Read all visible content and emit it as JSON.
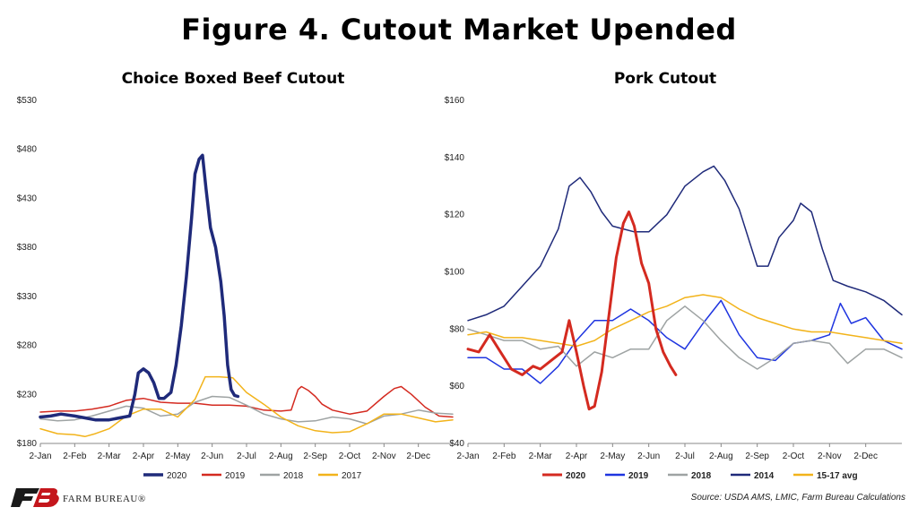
{
  "page": {
    "title": "Figure 4. Cutout Market Upended",
    "source": "Source: USDA AMS, LMIC,  Farm Bureau Calculations",
    "logo_text": "FARM BUREAU®",
    "logo_mark": "FB"
  },
  "colors": {
    "y2020_beef": "#1f2a7a",
    "y2019_beef": "#d42a20",
    "y2018": "#9ea3a3",
    "y2017": "#f2b31a",
    "y2020_pork": "#d42a20",
    "y2019_pork": "#1f35e0",
    "y2014": "#1f2a7a",
    "avg1517": "#f2b31a",
    "logo_red": "#c4161c",
    "logo_dark": "#1a1a1a"
  },
  "chart_data": [
    {
      "type": "line",
      "title": "Choice Boxed Beef Cutout",
      "xlabel": "",
      "ylabel": "",
      "x_domain": [
        0,
        12
      ],
      "ylim": [
        180,
        530
      ],
      "y_ticks": [
        "$180",
        "$230",
        "$280",
        "$330",
        "$380",
        "$430",
        "$480",
        "$530"
      ],
      "x_ticks": [
        "2-Jan",
        "2-Feb",
        "2-Mar",
        "2-Apr",
        "2-May",
        "2-Jun",
        "2-Jul",
        "2-Aug",
        "2-Sep",
        "2-Oct",
        "2-Nov",
        "2-Dec"
      ],
      "legend": "bottom",
      "series": [
        {
          "name": "2020",
          "color_key": "y2020_beef",
          "width": 3.5,
          "points": [
            [
              0,
              207
            ],
            [
              0.3,
              208
            ],
            [
              0.6,
              210
            ],
            [
              1,
              208
            ],
            [
              1.3,
              206
            ],
            [
              1.6,
              204
            ],
            [
              2,
              204
            ],
            [
              2.3,
              206
            ],
            [
              2.6,
              208
            ],
            [
              2.75,
              230
            ],
            [
              2.85,
              252
            ],
            [
              3,
              256
            ],
            [
              3.15,
              252
            ],
            [
              3.3,
              242
            ],
            [
              3.45,
              226
            ],
            [
              3.6,
              226
            ],
            [
              3.8,
              232
            ],
            [
              3.95,
              260
            ],
            [
              4.1,
              300
            ],
            [
              4.25,
              350
            ],
            [
              4.4,
              410
            ],
            [
              4.5,
              455
            ],
            [
              4.62,
              470
            ],
            [
              4.72,
              474
            ],
            [
              4.82,
              440
            ],
            [
              4.95,
              400
            ],
            [
              5.1,
              380
            ],
            [
              5.25,
              345
            ],
            [
              5.35,
              310
            ],
            [
              5.45,
              260
            ],
            [
              5.55,
              235
            ],
            [
              5.65,
              229
            ],
            [
              5.75,
              228
            ]
          ]
        },
        {
          "name": "2019",
          "color_key": "y2019_beef",
          "width": 1.5,
          "points": [
            [
              0,
              212
            ],
            [
              0.5,
              213
            ],
            [
              1,
              213
            ],
            [
              1.5,
              215
            ],
            [
              2,
              218
            ],
            [
              2.5,
              224
            ],
            [
              3,
              226
            ],
            [
              3.5,
              222
            ],
            [
              4,
              221
            ],
            [
              4.5,
              221
            ],
            [
              5,
              219
            ],
            [
              5.5,
              219
            ],
            [
              6,
              218
            ],
            [
              6.5,
              214
            ],
            [
              7,
              213
            ],
            [
              7.3,
              214
            ],
            [
              7.5,
              235
            ],
            [
              7.6,
              238
            ],
            [
              7.8,
              234
            ],
            [
              8,
              228
            ],
            [
              8.2,
              220
            ],
            [
              8.5,
              214
            ],
            [
              9,
              210
            ],
            [
              9.5,
              213
            ],
            [
              10,
              228
            ],
            [
              10.3,
              236
            ],
            [
              10.5,
              238
            ],
            [
              10.8,
              230
            ],
            [
              11.2,
              217
            ],
            [
              11.6,
              208
            ],
            [
              12,
              207
            ]
          ]
        },
        {
          "name": "2018",
          "color_key": "y2018",
          "width": 1.5,
          "points": [
            [
              0,
              205
            ],
            [
              0.5,
              203
            ],
            [
              1,
              204
            ],
            [
              1.5,
              208
            ],
            [
              2,
              213
            ],
            [
              2.5,
              218
            ],
            [
              3,
              216
            ],
            [
              3.5,
              208
            ],
            [
              4,
              210
            ],
            [
              4.5,
              222
            ],
            [
              5,
              228
            ],
            [
              5.5,
              227
            ],
            [
              6,
              219
            ],
            [
              6.5,
              210
            ],
            [
              7,
              205
            ],
            [
              7.5,
              202
            ],
            [
              8,
              203
            ],
            [
              8.5,
              207
            ],
            [
              9,
              205
            ],
            [
              9.5,
              200
            ],
            [
              10,
              208
            ],
            [
              10.5,
              210
            ],
            [
              11,
              214
            ],
            [
              11.5,
              211
            ],
            [
              12,
              210
            ]
          ]
        },
        {
          "name": "2017",
          "color_key": "y2017",
          "width": 1.5,
          "points": [
            [
              0,
              195
            ],
            [
              0.5,
              190
            ],
            [
              1,
              189
            ],
            [
              1.3,
              187
            ],
            [
              1.6,
              190
            ],
            [
              2,
              195
            ],
            [
              2.5,
              208
            ],
            [
              3,
              215
            ],
            [
              3.5,
              215
            ],
            [
              4,
              207
            ],
            [
              4.5,
              225
            ],
            [
              4.8,
              248
            ],
            [
              5.2,
              248
            ],
            [
              5.6,
              247
            ],
            [
              6,
              232
            ],
            [
              6.5,
              220
            ],
            [
              7,
              207
            ],
            [
              7.5,
              198
            ],
            [
              8,
              193
            ],
            [
              8.5,
              191
            ],
            [
              9,
              192
            ],
            [
              9.5,
              200
            ],
            [
              10,
              210
            ],
            [
              10.5,
              210
            ],
            [
              11,
              206
            ],
            [
              11.5,
              202
            ],
            [
              12,
              204
            ]
          ]
        }
      ]
    },
    {
      "type": "line",
      "title": "Pork Cutout",
      "xlabel": "",
      "ylabel": "",
      "x_domain": [
        0,
        12
      ],
      "ylim": [
        40,
        160
      ],
      "y_ticks": [
        "$40",
        "$60",
        "$80",
        "$100",
        "$120",
        "$140",
        "$160"
      ],
      "x_ticks": [
        "2-Jan",
        "2-Feb",
        "2-Mar",
        "2-Apr",
        "2-May",
        "2-Jun",
        "2-Jul",
        "2-Aug",
        "2-Sep",
        "2-Oct",
        "2-Nov",
        "2-Dec"
      ],
      "legend": "bottom",
      "series": [
        {
          "name": "2020",
          "color_key": "y2020_pork",
          "width": 3,
          "points": [
            [
              0,
              73
            ],
            [
              0.3,
              72
            ],
            [
              0.6,
              78
            ],
            [
              0.9,
              72
            ],
            [
              1.2,
              66
            ],
            [
              1.5,
              64
            ],
            [
              1.8,
              67
            ],
            [
              2,
              66
            ],
            [
              2.3,
              69
            ],
            [
              2.6,
              72
            ],
            [
              2.8,
              83
            ],
            [
              3.0,
              72
            ],
            [
              3.2,
              60
            ],
            [
              3.35,
              52
            ],
            [
              3.5,
              53
            ],
            [
              3.7,
              65
            ],
            [
              3.9,
              85
            ],
            [
              4.1,
              105
            ],
            [
              4.3,
              117
            ],
            [
              4.45,
              121
            ],
            [
              4.6,
              116
            ],
            [
              4.8,
              103
            ],
            [
              5.0,
              96
            ],
            [
              5.2,
              80
            ],
            [
              5.4,
              72
            ],
            [
              5.6,
              67
            ],
            [
              5.75,
              64
            ]
          ]
        },
        {
          "name": "2019",
          "color_key": "y2019_pork",
          "width": 1.5,
          "points": [
            [
              0,
              70
            ],
            [
              0.5,
              70
            ],
            [
              1,
              66
            ],
            [
              1.5,
              66
            ],
            [
              2,
              61
            ],
            [
              2.5,
              67
            ],
            [
              3,
              76
            ],
            [
              3.5,
              83
            ],
            [
              4,
              83
            ],
            [
              4.5,
              87
            ],
            [
              5,
              83
            ],
            [
              5.5,
              77
            ],
            [
              6,
              73
            ],
            [
              6.5,
              82
            ],
            [
              7,
              90
            ],
            [
              7.5,
              78
            ],
            [
              8,
              70
            ],
            [
              8.5,
              69
            ],
            [
              9,
              75
            ],
            [
              9.5,
              76
            ],
            [
              10,
              78
            ],
            [
              10.3,
              89
            ],
            [
              10.6,
              82
            ],
            [
              11,
              84
            ],
            [
              11.5,
              76
            ],
            [
              12,
              73
            ]
          ]
        },
        {
          "name": "2018",
          "color_key": "y2018",
          "width": 1.5,
          "points": [
            [
              0,
              80
            ],
            [
              0.5,
              78
            ],
            [
              1,
              76
            ],
            [
              1.5,
              76
            ],
            [
              2,
              73
            ],
            [
              2.5,
              74
            ],
            [
              3,
              67
            ],
            [
              3.5,
              72
            ],
            [
              4,
              70
            ],
            [
              4.5,
              73
            ],
            [
              5,
              73
            ],
            [
              5.5,
              83
            ],
            [
              6,
              88
            ],
            [
              6.5,
              83
            ],
            [
              7,
              76
            ],
            [
              7.5,
              70
            ],
            [
              8,
              66
            ],
            [
              8.5,
              70
            ],
            [
              9,
              75
            ],
            [
              9.5,
              76
            ],
            [
              10,
              75
            ],
            [
              10.5,
              68
            ],
            [
              11,
              73
            ],
            [
              11.5,
              73
            ],
            [
              12,
              70
            ]
          ]
        },
        {
          "name": "2014",
          "color_key": "y2014",
          "width": 1.5,
          "points": [
            [
              0,
              83
            ],
            [
              0.5,
              85
            ],
            [
              1,
              88
            ],
            [
              1.5,
              95
            ],
            [
              2,
              102
            ],
            [
              2.5,
              115
            ],
            [
              2.8,
              130
            ],
            [
              3.1,
              133
            ],
            [
              3.4,
              128
            ],
            [
              3.7,
              121
            ],
            [
              4,
              116
            ],
            [
              4.3,
              115
            ],
            [
              4.6,
              114
            ],
            [
              5,
              114
            ],
            [
              5.5,
              120
            ],
            [
              6,
              130
            ],
            [
              6.5,
              135
            ],
            [
              6.8,
              137
            ],
            [
              7.1,
              132
            ],
            [
              7.5,
              122
            ],
            [
              7.8,
              110
            ],
            [
              8.0,
              102
            ],
            [
              8.3,
              102
            ],
            [
              8.6,
              112
            ],
            [
              9,
              118
            ],
            [
              9.2,
              124
            ],
            [
              9.5,
              121
            ],
            [
              9.8,
              108
            ],
            [
              10.1,
              97
            ],
            [
              10.5,
              95
            ],
            [
              11,
              93
            ],
            [
              11.5,
              90
            ],
            [
              12,
              85
            ]
          ]
        },
        {
          "name": "15-17 avg",
          "color_key": "avg1517",
          "width": 1.5,
          "points": [
            [
              0,
              78
            ],
            [
              0.5,
              79
            ],
            [
              1,
              77
            ],
            [
              1.5,
              77
            ],
            [
              2,
              76
            ],
            [
              2.5,
              75
            ],
            [
              3,
              74
            ],
            [
              3.5,
              76
            ],
            [
              4,
              80
            ],
            [
              4.5,
              83
            ],
            [
              5,
              86
            ],
            [
              5.5,
              88
            ],
            [
              6,
              91
            ],
            [
              6.5,
              92
            ],
            [
              7,
              91
            ],
            [
              7.5,
              87
            ],
            [
              8,
              84
            ],
            [
              8.5,
              82
            ],
            [
              9,
              80
            ],
            [
              9.5,
              79
            ],
            [
              10,
              79
            ],
            [
              10.5,
              78
            ],
            [
              11,
              77
            ],
            [
              11.5,
              76
            ],
            [
              12,
              75
            ]
          ]
        }
      ]
    }
  ]
}
